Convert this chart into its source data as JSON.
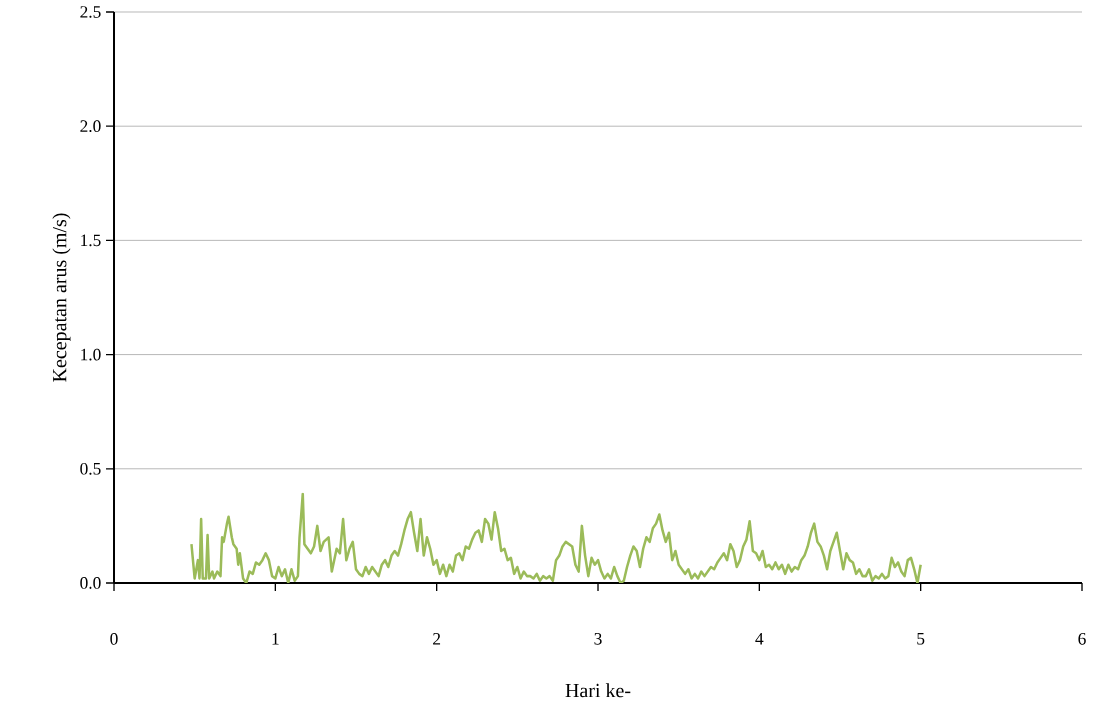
{
  "chart_data": {
    "type": "line",
    "xlabel": "Hari ke-",
    "ylabel": "Kecepatan arus (m/s)",
    "xlim": [
      0,
      6
    ],
    "xticks": [
      0,
      1,
      2,
      3,
      4,
      5,
      6
    ],
    "ylim": [
      0,
      2.5
    ],
    "yticks": [
      {
        "value": 0,
        "label": "0.0"
      },
      {
        "value": 0.5,
        "label": "0.5"
      },
      {
        "value": 1,
        "label": "1.0"
      },
      {
        "value": 1.5,
        "label": "1.5"
      },
      {
        "value": 2,
        "label": "2.0"
      },
      {
        "value": 2.5,
        "label": "2.5"
      }
    ],
    "grid": "y",
    "marker": "none",
    "line_style": "solid",
    "series": [
      {
        "color": "#9bbb59",
        "x": [
          0.48,
          0.5,
          0.52,
          0.53,
          0.54,
          0.55,
          0.57,
          0.58,
          0.59,
          0.61,
          0.62,
          0.64,
          0.66,
          0.67,
          0.68,
          0.7,
          0.71,
          0.73,
          0.74,
          0.76,
          0.77,
          0.78,
          0.8,
          0.82,
          0.84,
          0.86,
          0.88,
          0.9,
          0.92,
          0.94,
          0.96,
          0.98,
          1.0,
          1.02,
          1.04,
          1.06,
          1.08,
          1.1,
          1.12,
          1.14,
          1.15,
          1.17,
          1.18,
          1.2,
          1.22,
          1.24,
          1.26,
          1.28,
          1.3,
          1.33,
          1.35,
          1.38,
          1.4,
          1.42,
          1.44,
          1.46,
          1.48,
          1.5,
          1.52,
          1.54,
          1.56,
          1.58,
          1.6,
          1.62,
          1.64,
          1.66,
          1.68,
          1.7,
          1.72,
          1.74,
          1.76,
          1.78,
          1.8,
          1.82,
          1.84,
          1.86,
          1.88,
          1.9,
          1.92,
          1.94,
          1.96,
          1.98,
          2.0,
          2.02,
          2.04,
          2.06,
          2.08,
          2.1,
          2.12,
          2.14,
          2.16,
          2.18,
          2.2,
          2.22,
          2.24,
          2.26,
          2.28,
          2.3,
          2.32,
          2.34,
          2.36,
          2.38,
          2.4,
          2.42,
          2.44,
          2.46,
          2.48,
          2.5,
          2.52,
          2.54,
          2.56,
          2.58,
          2.6,
          2.62,
          2.64,
          2.66,
          2.68,
          2.7,
          2.72,
          2.74,
          2.76,
          2.78,
          2.8,
          2.82,
          2.84,
          2.86,
          2.88,
          2.9,
          2.92,
          2.94,
          2.96,
          2.98,
          3.0,
          3.02,
          3.04,
          3.06,
          3.08,
          3.1,
          3.12,
          3.14,
          3.16,
          3.18,
          3.2,
          3.22,
          3.24,
          3.26,
          3.28,
          3.3,
          3.32,
          3.34,
          3.36,
          3.38,
          3.4,
          3.42,
          3.44,
          3.46,
          3.48,
          3.5,
          3.52,
          3.54,
          3.56,
          3.58,
          3.6,
          3.62,
          3.64,
          3.66,
          3.68,
          3.7,
          3.72,
          3.74,
          3.76,
          3.78,
          3.8,
          3.82,
          3.84,
          3.86,
          3.88,
          3.9,
          3.92,
          3.94,
          3.96,
          3.98,
          4.0,
          4.02,
          4.04,
          4.06,
          4.08,
          4.1,
          4.12,
          4.14,
          4.16,
          4.18,
          4.2,
          4.22,
          4.24,
          4.26,
          4.28,
          4.3,
          4.32,
          4.34,
          4.36,
          4.38,
          4.4,
          4.42,
          4.44,
          4.46,
          4.48,
          4.5,
          4.52,
          4.54,
          4.56,
          4.58,
          4.6,
          4.62,
          4.64,
          4.66,
          4.68,
          4.7,
          4.72,
          4.74,
          4.76,
          4.78,
          4.8,
          4.82,
          4.84,
          4.86,
          4.88,
          4.9,
          4.92,
          4.94,
          4.96,
          4.98,
          5.0
        ],
        "values": [
          0.17,
          0.02,
          0.1,
          0.02,
          0.28,
          0.02,
          0.02,
          0.21,
          0.02,
          0.05,
          0.02,
          0.05,
          0.03,
          0.2,
          0.18,
          0.26,
          0.29,
          0.2,
          0.17,
          0.15,
          0.08,
          0.13,
          0.02,
          0.0,
          0.05,
          0.04,
          0.09,
          0.08,
          0.1,
          0.13,
          0.1,
          0.03,
          0.02,
          0.07,
          0.03,
          0.06,
          0.0,
          0.06,
          0.01,
          0.03,
          0.2,
          0.39,
          0.17,
          0.15,
          0.13,
          0.16,
          0.25,
          0.14,
          0.18,
          0.2,
          0.05,
          0.15,
          0.13,
          0.28,
          0.1,
          0.15,
          0.18,
          0.06,
          0.04,
          0.03,
          0.07,
          0.04,
          0.07,
          0.05,
          0.03,
          0.08,
          0.1,
          0.07,
          0.12,
          0.14,
          0.12,
          0.17,
          0.23,
          0.28,
          0.31,
          0.22,
          0.14,
          0.28,
          0.12,
          0.2,
          0.15,
          0.08,
          0.1,
          0.04,
          0.08,
          0.03,
          0.08,
          0.05,
          0.12,
          0.13,
          0.1,
          0.16,
          0.15,
          0.19,
          0.22,
          0.23,
          0.18,
          0.28,
          0.26,
          0.19,
          0.31,
          0.24,
          0.14,
          0.15,
          0.1,
          0.11,
          0.04,
          0.07,
          0.02,
          0.05,
          0.03,
          0.03,
          0.02,
          0.04,
          0.01,
          0.03,
          0.02,
          0.03,
          0.01,
          0.1,
          0.12,
          0.16,
          0.18,
          0.17,
          0.16,
          0.08,
          0.05,
          0.25,
          0.12,
          0.03,
          0.11,
          0.08,
          0.1,
          0.05,
          0.02,
          0.04,
          0.02,
          0.07,
          0.03,
          0.0,
          0.01,
          0.07,
          0.12,
          0.16,
          0.14,
          0.07,
          0.15,
          0.2,
          0.18,
          0.24,
          0.26,
          0.3,
          0.23,
          0.18,
          0.22,
          0.1,
          0.14,
          0.08,
          0.06,
          0.04,
          0.06,
          0.02,
          0.04,
          0.02,
          0.05,
          0.03,
          0.05,
          0.07,
          0.06,
          0.09,
          0.11,
          0.13,
          0.1,
          0.17,
          0.14,
          0.07,
          0.1,
          0.16,
          0.19,
          0.27,
          0.14,
          0.13,
          0.1,
          0.14,
          0.07,
          0.08,
          0.06,
          0.09,
          0.06,
          0.08,
          0.04,
          0.08,
          0.05,
          0.07,
          0.06,
          0.1,
          0.12,
          0.16,
          0.22,
          0.26,
          0.18,
          0.16,
          0.12,
          0.06,
          0.14,
          0.18,
          0.22,
          0.14,
          0.06,
          0.13,
          0.1,
          0.09,
          0.04,
          0.06,
          0.03,
          0.03,
          0.06,
          0.01,
          0.03,
          0.02,
          0.04,
          0.02,
          0.03,
          0.11,
          0.07,
          0.09,
          0.05,
          0.03,
          0.1,
          0.11,
          0.06,
          0.0,
          0.08
        ]
      }
    ]
  }
}
